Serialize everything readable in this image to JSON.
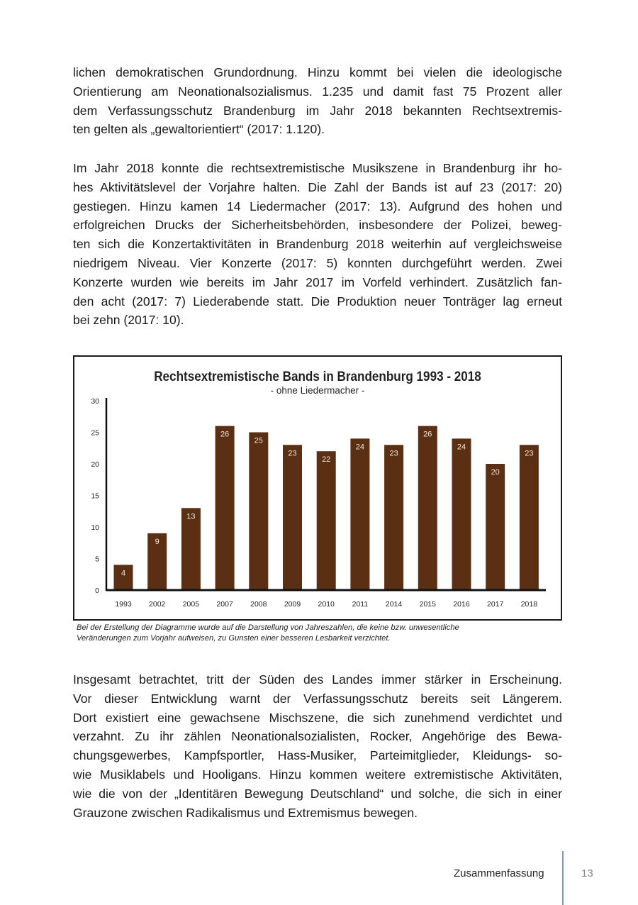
{
  "paragraphs": [
    [
      "lichen demokratischen Grundordnung. Hinzu kommt bei vielen die ideologische",
      "Orientierung am Neonationalsozialismus. 1.235 und damit fast 75 Prozent aller",
      "dem Verfassungsschutz Brandenburg im Jahr 2018 bekannten Rechtsextremis-",
      "ten gelten als „gewaltorientiert“ (2017: 1.120)."
    ],
    [
      "Im Jahr 2018 konnte die rechtsextremistische Musikszene in Brandenburg ihr ho-",
      "hes Aktivitätslevel der Vorjahre halten. Die Zahl der Bands ist auf 23 (2017: 20)",
      "gestiegen. Hinzu kamen 14 Liedermacher (2017: 13). Aufgrund des hohen und",
      "erfolgreichen Drucks der Sicherheitsbehörden, insbesondere der Polizei, beweg-",
      "ten sich die Konzertaktivitäten in Brandenburg 2018 weiterhin auf vergleichsweise",
      "niedrigem Niveau. Vier Konzerte (2017: 5) konnten durchgeführt werden. Zwei",
      "Konzerte wurden wie bereits im Jahr 2017 im Vorfeld verhindert. Zusätzlich fan-",
      "den acht (2017: 7) Liederabende statt. Die Produktion neuer Tonträger lag erneut",
      "bei zehn (2017: 10)."
    ],
    [
      "Insgesamt betrachtet, tritt der Süden des Landes immer stärker in Erscheinung.",
      "Vor dieser Entwicklung warnt der Verfassungsschutz bereits seit Längerem.",
      "Dort existiert eine gewachsene Mischszene, die sich zunehmend verdichtet und",
      "verzahnt. Zu ihr zählen Neonationalsozialisten, Rocker, Angehörige des Bewa-",
      "chungsgewerbes, Kampfsportler, Hass-Musiker, Parteimitglieder, Kleidungs- so-",
      "wie Musiklabels und Hooligans. Hinzu kommen weitere extremistische Aktivitäten,",
      "wie die von der „Identitären Bewegung Deutschland“ und solche, die sich in einer",
      "Grauzone zwischen Radikalismus und Extremismus bewegen."
    ]
  ],
  "chart_data": {
    "type": "bar",
    "title": "Rechtsextremistische Bands in Brandenburg 1993 - 2018",
    "subtitle": "- ohne Liedermacher -",
    "categories": [
      "1993",
      "2002",
      "2005",
      "2007",
      "2008",
      "2009",
      "2010",
      "2011",
      "2014",
      "2015",
      "2016",
      "2017",
      "2018"
    ],
    "values": [
      4,
      9,
      13,
      26,
      25,
      23,
      22,
      24,
      23,
      26,
      24,
      20,
      23
    ],
    "ylim": [
      0,
      30
    ],
    "yticks": [
      0,
      5,
      10,
      15,
      20,
      25,
      30
    ],
    "xlabel": "",
    "ylabel": "",
    "grid": false,
    "data_labels": true,
    "bar_color": "#5a2f14",
    "label_color": "#f3e6d6"
  },
  "caption": [
    "Bei der Erstellung der Diagramme wurde auf die Darstellung von Jahreszahlen, die keine bzw. unwesentliche",
    "Veränderungen zum Vorjahr aufweisen, zu Gunsten einer besseren Lesbarkeit verzichtet."
  ],
  "footer": {
    "section": "Zusammenfassung",
    "page": "13",
    "divider_color": "#7a9cc8"
  }
}
